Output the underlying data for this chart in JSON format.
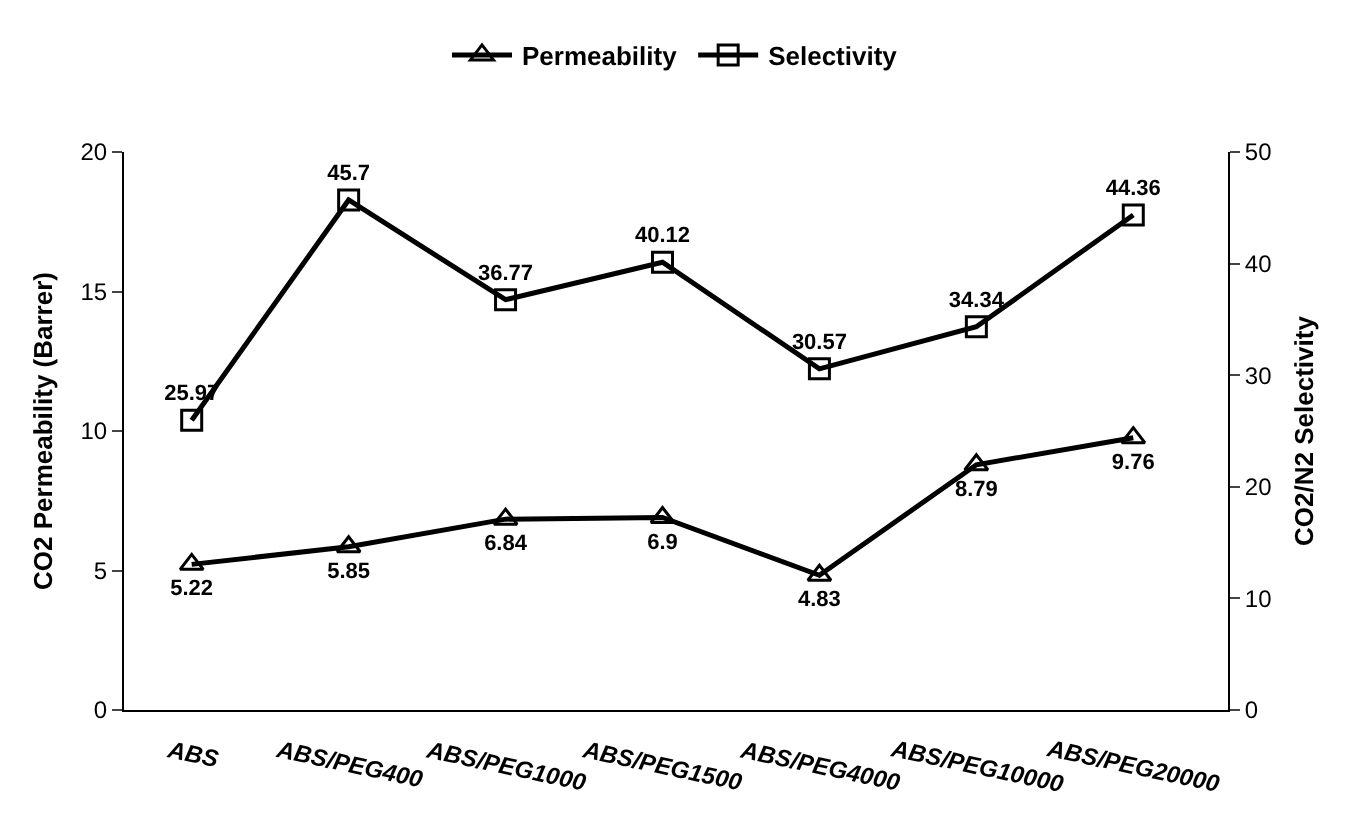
{
  "chart_data": {
    "type": "line",
    "categories": [
      "ABS",
      "ABS/PEG400",
      "ABS/PEG1000",
      "ABS/PEG1500",
      "ABS/PEG4000",
      "ABS/PEG10000",
      "ABS/PEG20000"
    ],
    "series": [
      {
        "name": "Permeability",
        "color": "#000000",
        "marker": "triangle",
        "values": [
          5.22,
          5.85,
          6.84,
          6.9,
          4.83,
          8.79,
          9.76
        ]
      },
      {
        "name": "Selectivity",
        "color": "#000000",
        "marker": "square",
        "axis": "y2",
        "values": [
          25.97,
          45.7,
          36.77,
          40.12,
          30.57,
          34.34,
          44.36
        ]
      }
    ],
    "ylabel": "CO2 Permeability (Barrer)",
    "y2label": "CO2/N2 Selectivity",
    "ylim": [
      0,
      20
    ],
    "yticks": [
      0,
      5,
      10,
      15,
      20
    ],
    "y2lim": [
      0,
      50
    ],
    "y2ticks": [
      0,
      10,
      20,
      30,
      40,
      50
    ],
    "data_labels": true,
    "legend": "top",
    "grid": false,
    "line_style": "solid"
  }
}
